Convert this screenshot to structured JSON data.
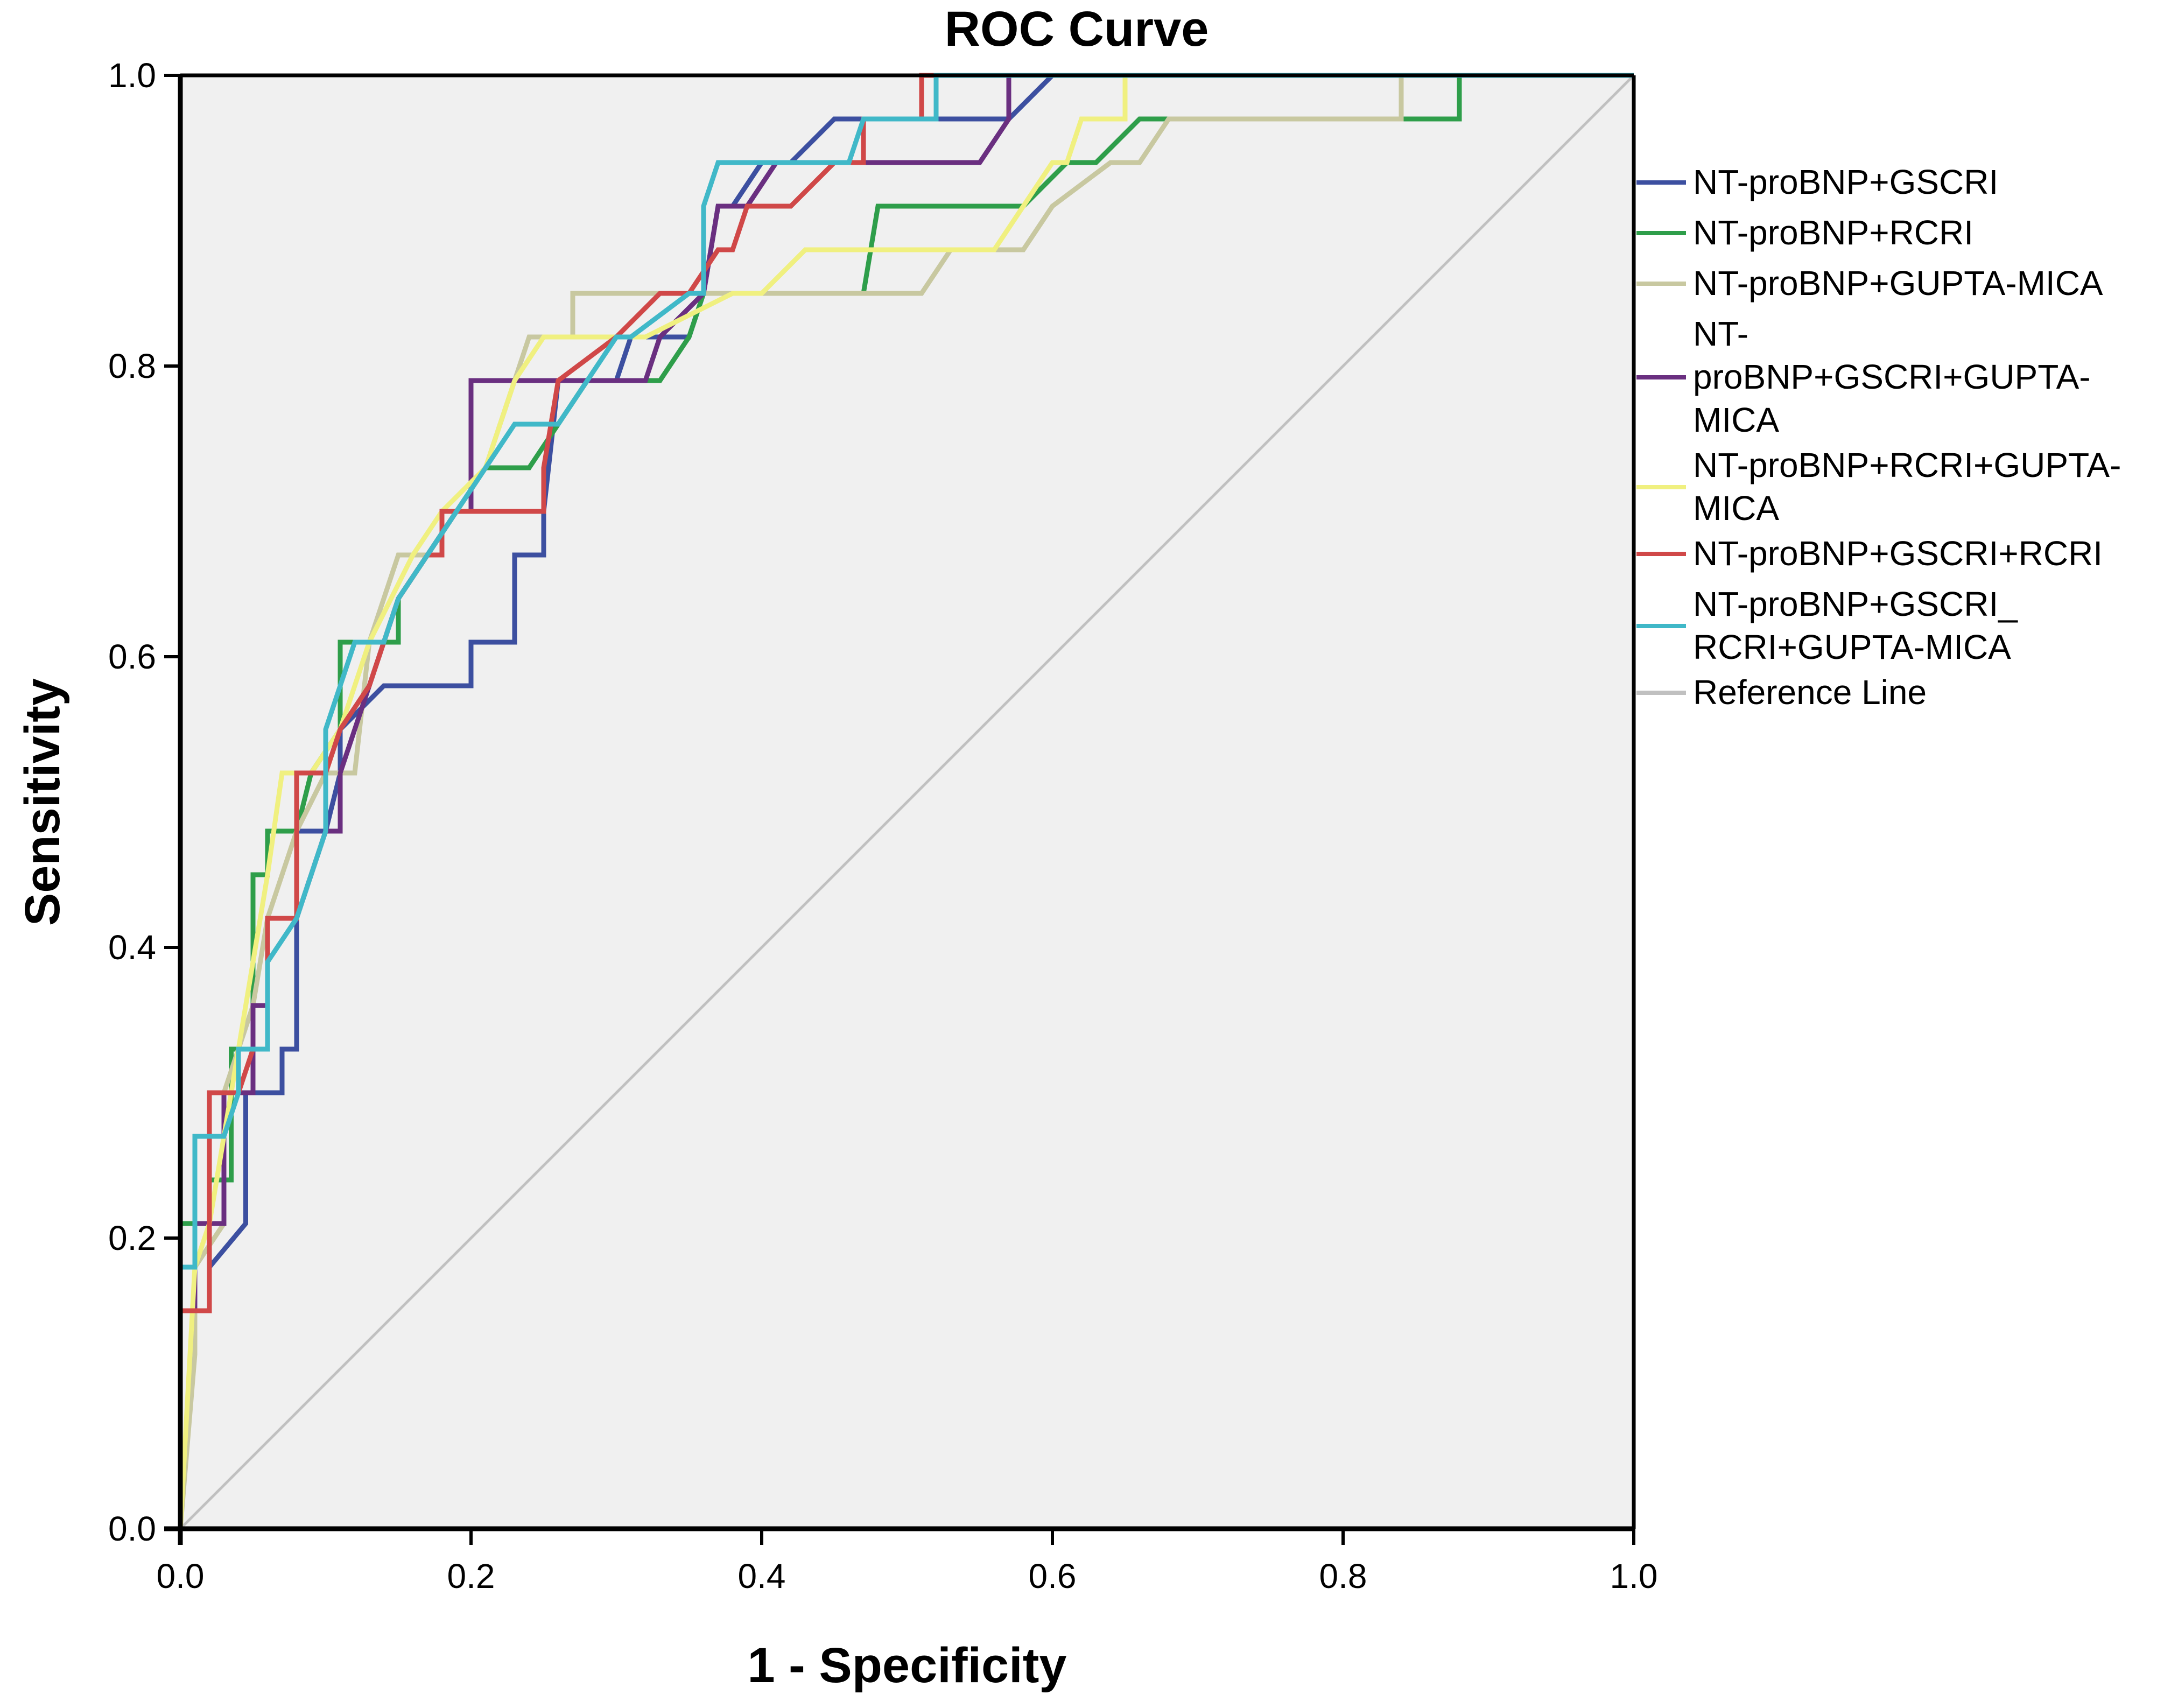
{
  "chart_data": {
    "type": "line",
    "title": "ROC Curve",
    "xlabel": "1 - Specificity",
    "ylabel": "Sensitivity",
    "xlim": [
      0,
      1
    ],
    "ylim": [
      0,
      1
    ],
    "xticks": [
      "0.0",
      "0.2",
      "0.4",
      "0.6",
      "0.8",
      "1.0"
    ],
    "yticks": [
      "0.0",
      "0.2",
      "0.4",
      "0.6",
      "0.8",
      "1.0"
    ],
    "grid": false,
    "legend_position": "right",
    "background": "#f0f0f0",
    "series": [
      {
        "name": "NT-proBNP+GSCRI",
        "legend_lines": [
          "NT-proBNP+GSCRI"
        ],
        "color": "#3c4fa0",
        "x": [
          0,
          0,
          0.02,
          0.02,
          0.045,
          0.045,
          0.07,
          0.07,
          0.08,
          0.08,
          0.1,
          0.11,
          0.11,
          0.14,
          0.2,
          0.2,
          0.23,
          0.23,
          0.25,
          0.25,
          0.26,
          0.3,
          0.31,
          0.35,
          0.36,
          0.37,
          0.38,
          0.4,
          0.42,
          0.45,
          0.57,
          0.6,
          1.0
        ],
        "y": [
          0,
          0.15,
          0.15,
          0.18,
          0.21,
          0.3,
          0.3,
          0.33,
          0.33,
          0.48,
          0.48,
          0.52,
          0.55,
          0.58,
          0.58,
          0.61,
          0.61,
          0.67,
          0.67,
          0.7,
          0.79,
          0.79,
          0.82,
          0.82,
          0.85,
          0.91,
          0.91,
          0.94,
          0.94,
          0.97,
          0.97,
          1.0,
          1.0
        ]
      },
      {
        "name": "NT-proBNP+RCRI",
        "legend_lines": [
          "NT-proBNP+RCRI"
        ],
        "color": "#2e9e4a",
        "x": [
          0,
          0,
          0.02,
          0.02,
          0.035,
          0.035,
          0.05,
          0.05,
          0.06,
          0.06,
          0.08,
          0.09,
          0.11,
          0.11,
          0.15,
          0.15,
          0.17,
          0.19,
          0.21,
          0.24,
          0.26,
          0.28,
          0.3,
          0.33,
          0.35,
          0.36,
          0.38,
          0.38,
          0.47,
          0.48,
          0.55,
          0.58,
          0.61,
          0.63,
          0.66,
          0.69,
          0.84,
          0.88,
          0.88,
          1.0
        ],
        "y": [
          0,
          0.21,
          0.21,
          0.24,
          0.24,
          0.33,
          0.33,
          0.45,
          0.45,
          0.48,
          0.48,
          0.52,
          0.55,
          0.61,
          0.61,
          0.64,
          0.67,
          0.7,
          0.73,
          0.73,
          0.76,
          0.79,
          0.79,
          0.79,
          0.82,
          0.85,
          0.85,
          0.85,
          0.85,
          0.91,
          0.91,
          0.91,
          0.94,
          0.94,
          0.97,
          0.97,
          0.97,
          0.97,
          1.0,
          1.0
        ]
      },
      {
        "name": "NT-proBNP+GUPTA-MICA",
        "legend_lines": [
          "NT-proBNP+GUPTA-MICA"
        ],
        "color": "#c8c8a0",
        "x": [
          0,
          0.01,
          0.01,
          0.03,
          0.03,
          0.05,
          0.06,
          0.08,
          0.1,
          0.12,
          0.13,
          0.15,
          0.17,
          0.19,
          0.21,
          0.23,
          0.24,
          0.27,
          0.27,
          0.36,
          0.37,
          0.51,
          0.53,
          0.58,
          0.6,
          0.64,
          0.66,
          0.68,
          0.7,
          0.84,
          0.84,
          1.0
        ],
        "y": [
          0,
          0.12,
          0.18,
          0.21,
          0.3,
          0.36,
          0.42,
          0.48,
          0.52,
          0.52,
          0.61,
          0.67,
          0.67,
          0.7,
          0.73,
          0.79,
          0.82,
          0.82,
          0.85,
          0.85,
          0.85,
          0.85,
          0.88,
          0.88,
          0.91,
          0.94,
          0.94,
          0.97,
          0.97,
          0.97,
          1.0,
          1.0
        ]
      },
      {
        "name": "NT-proBNP+GSCRI+GUPTA-MICA",
        "legend_lines": [
          "NT-",
          "proBNP+GSCRI+GUPTA-",
          "MICA"
        ],
        "color": "#6a2f80",
        "x": [
          0,
          0,
          0.01,
          0.01,
          0.03,
          0.03,
          0.05,
          0.05,
          0.06,
          0.06,
          0.08,
          0.09,
          0.1,
          0.11,
          0.11,
          0.13,
          0.15,
          0.17,
          0.19,
          0.2,
          0.2,
          0.24,
          0.26,
          0.32,
          0.33,
          0.36,
          0.37,
          0.39,
          0.41,
          0.41,
          0.55,
          0.57,
          0.57,
          1.0
        ],
        "y": [
          0,
          0.15,
          0.15,
          0.21,
          0.21,
          0.3,
          0.3,
          0.36,
          0.36,
          0.42,
          0.42,
          0.45,
          0.48,
          0.48,
          0.52,
          0.58,
          0.64,
          0.67,
          0.7,
          0.7,
          0.79,
          0.79,
          0.79,
          0.79,
          0.82,
          0.85,
          0.91,
          0.91,
          0.94,
          0.94,
          0.94,
          0.97,
          1.0,
          1.0
        ]
      },
      {
        "name": "NT-proBNP+RCRI+GUPTA-MICA",
        "legend_lines": [
          "NT-proBNP+RCRI+GUPTA-",
          "MICA"
        ],
        "color": "#f0f080",
        "x": [
          0,
          0.01,
          0.02,
          0.03,
          0.04,
          0.05,
          0.06,
          0.07,
          0.09,
          0.11,
          0.12,
          0.13,
          0.16,
          0.18,
          0.21,
          0.23,
          0.25,
          0.28,
          0.32,
          0.38,
          0.4,
          0.43,
          0.47,
          0.56,
          0.58,
          0.6,
          0.61,
          0.62,
          0.65,
          0.65,
          1.0
        ],
        "y": [
          0,
          0.18,
          0.21,
          0.27,
          0.33,
          0.39,
          0.45,
          0.52,
          0.52,
          0.55,
          0.58,
          0.61,
          0.67,
          0.7,
          0.73,
          0.79,
          0.82,
          0.82,
          0.82,
          0.85,
          0.85,
          0.88,
          0.88,
          0.88,
          0.91,
          0.94,
          0.94,
          0.97,
          0.97,
          1.0,
          1.0
        ]
      },
      {
        "name": "NT-proBNP+GSCRI+RCRI",
        "legend_lines": [
          "NT-proBNP+GSCRI+RCRI"
        ],
        "color": "#d04848",
        "x": [
          0,
          0,
          0.02,
          0.02,
          0.04,
          0.05,
          0.06,
          0.06,
          0.08,
          0.08,
          0.1,
          0.11,
          0.13,
          0.15,
          0.17,
          0.18,
          0.18,
          0.2,
          0.25,
          0.25,
          0.26,
          0.3,
          0.33,
          0.35,
          0.37,
          0.38,
          0.39,
          0.42,
          0.45,
          0.47,
          0.47,
          0.51,
          0.51,
          1.0
        ],
        "y": [
          0,
          0.15,
          0.15,
          0.3,
          0.3,
          0.33,
          0.33,
          0.42,
          0.42,
          0.52,
          0.52,
          0.55,
          0.58,
          0.64,
          0.67,
          0.67,
          0.7,
          0.7,
          0.7,
          0.73,
          0.79,
          0.82,
          0.85,
          0.85,
          0.88,
          0.88,
          0.91,
          0.91,
          0.94,
          0.94,
          0.97,
          0.97,
          1.0,
          1.0
        ]
      },
      {
        "name": "NT-proBNP+GSCRI_ RCRI+GUPTA-MICA",
        "legend_lines": [
          "NT-proBNP+GSCRI_",
          "RCRI+GUPTA-MICA"
        ],
        "color": "#40b8c8",
        "x": [
          0,
          0,
          0.01,
          0.01,
          0.03,
          0.04,
          0.04,
          0.06,
          0.06,
          0.08,
          0.1,
          0.1,
          0.12,
          0.14,
          0.15,
          0.17,
          0.19,
          0.21,
          0.23,
          0.26,
          0.28,
          0.3,
          0.31,
          0.35,
          0.36,
          0.36,
          0.37,
          0.38,
          0.42,
          0.46,
          0.47,
          0.52,
          0.52,
          1.0
        ],
        "y": [
          0,
          0.18,
          0.18,
          0.27,
          0.27,
          0.3,
          0.33,
          0.33,
          0.39,
          0.42,
          0.48,
          0.55,
          0.61,
          0.61,
          0.64,
          0.67,
          0.7,
          0.73,
          0.76,
          0.76,
          0.79,
          0.82,
          0.82,
          0.85,
          0.85,
          0.91,
          0.94,
          0.94,
          0.94,
          0.94,
          0.97,
          0.97,
          1.0,
          1.0
        ]
      },
      {
        "name": "Reference Line",
        "legend_lines": [
          "Reference Line"
        ],
        "color": "#c0c0c0",
        "x": [
          0,
          1
        ],
        "y": [
          0,
          1
        ]
      }
    ]
  }
}
